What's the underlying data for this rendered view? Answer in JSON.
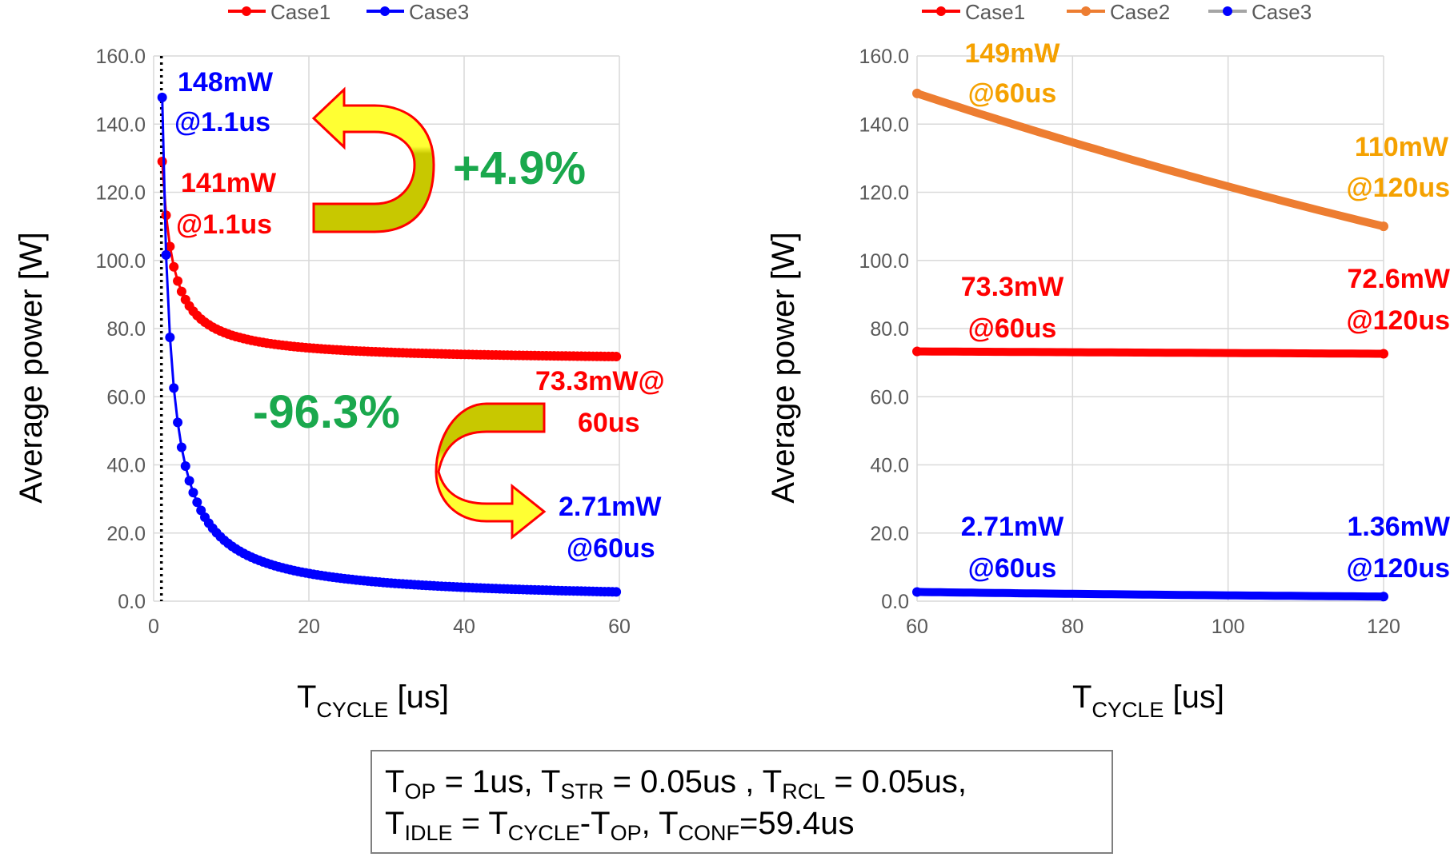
{
  "chart_data": [
    {
      "type": "line",
      "xlabel": "T",
      "xlabel_sub": "CYCLE",
      "xlabel_unit": " [us]",
      "ylabel": "Average power [W]",
      "xlim": [
        0,
        60
      ],
      "ylim": [
        0,
        160
      ],
      "xticks": [
        "0",
        "20",
        "40",
        "60"
      ],
      "yticks": [
        "0.0",
        "20.0",
        "40.0",
        "60.0",
        "80.0",
        "100.0",
        "120.0",
        "140.0",
        "160.0"
      ],
      "series": [
        {
          "name": "Case1",
          "color": "#ff0000",
          "model": "case1"
        },
        {
          "name": "Case3",
          "color": "#0000ff",
          "model": "case3"
        }
      ],
      "x_start": 1.1,
      "x_end": 60,
      "annotations": {
        "a148_line1": "148mW",
        "a148_line2": "@1.1us",
        "a141_line1": "141mW",
        "a141_line2": "@1.1us",
        "a733_line1": "73.3mW@",
        "a733_line2": "60us",
        "a271_line1": "2.71mW",
        "a271_line2": "@60us",
        "up_pct": "+4.9%",
        "down_pct": "-96.3%"
      }
    },
    {
      "type": "line",
      "xlabel": "T",
      "xlabel_sub": "CYCLE",
      "xlabel_unit": " [us]",
      "ylabel": "Average power [W]",
      "xlim": [
        60,
        120
      ],
      "ylim": [
        0,
        160
      ],
      "xticks": [
        "60",
        "80",
        "100",
        "120"
      ],
      "yticks": [
        "0.0",
        "20.0",
        "40.0",
        "60.0",
        "80.0",
        "100.0",
        "120.0",
        "140.0",
        "160.0"
      ],
      "series": [
        {
          "name": "Case1",
          "color": "#ff0000",
          "values": [
            73.3,
            72.6
          ]
        },
        {
          "name": "Case2",
          "color": "#ed7d31",
          "values": [
            149,
            110
          ]
        },
        {
          "name": "Case3",
          "color": "#0000ff",
          "values": [
            2.71,
            1.36
          ]
        }
      ],
      "x": [
        60,
        120
      ],
      "annotations": {
        "a149_line1": "149mW",
        "a149_line2": "@60us",
        "a110_line1": "110mW",
        "a110_line2": "@120us",
        "a733_line1": "73.3mW",
        "a733_line2": "@60us",
        "a726_line1": "72.6mW",
        "a726_line2": "@120us",
        "a271_line1": "2.71mW",
        "a271_line2": "@60us",
        "a136_line1": "1.36mW",
        "a136_line2": "@120us"
      }
    }
  ],
  "params": {
    "l1_t1": "T",
    "l1_s1": "OP",
    "l1_r1": " = 1us, T",
    "l1_s2": "STR",
    "l1_r2": " = 0.05us , T",
    "l1_s3": "RCL",
    "l1_r3": " = 0.05us,",
    "l2_t1": "T",
    "l2_s1": "IDLE",
    "l2_r1": " = T",
    "l2_s2": "CYCLE",
    "l2_r2": "-T",
    "l2_s3": "OP",
    "l2_r3": ", T",
    "l2_s4": "CONF",
    "l2_r4": "=59.4us"
  },
  "colors": {
    "case1": "#ff0000",
    "case2": "#ed7d31",
    "case3": "#0000ff",
    "label_orange": "#f5a100",
    "pct_green": "#1aa84d",
    "arrow_fill_light": "#ffff33",
    "arrow_fill_dark": "#c8c800",
    "arrow_edge": "#ff0000"
  }
}
